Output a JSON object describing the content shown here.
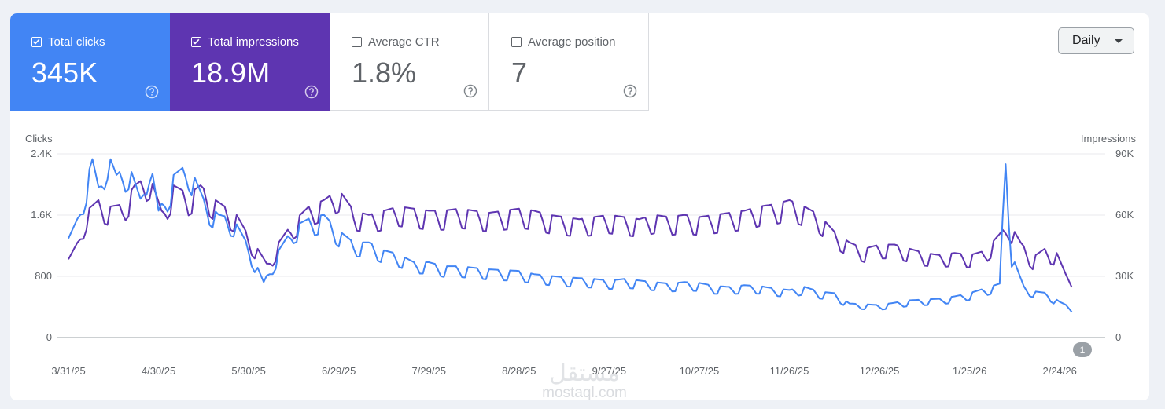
{
  "metrics": {
    "clicks": {
      "label": "Total clicks",
      "value": "345K",
      "checked": true
    },
    "impressions": {
      "label": "Total impressions",
      "value": "18.9M",
      "checked": true
    },
    "ctr": {
      "label": "Average CTR",
      "value": "1.8%",
      "checked": false
    },
    "position": {
      "label": "Average position",
      "value": "7",
      "checked": false
    }
  },
  "granularity": {
    "selected": "Daily"
  },
  "annotation_badge": "1",
  "watermark": {
    "arabic": "مستقل",
    "latin": "mostaql.com"
  },
  "colors": {
    "clicks": "#4285f4",
    "impressions": "#5e35b1",
    "grid": "#e8eaed"
  },
  "chart_data": {
    "type": "line",
    "x_tick_labels": [
      "3/31/25",
      "4/30/25",
      "5/30/25",
      "6/29/25",
      "7/29/25",
      "8/28/25",
      "9/27/25",
      "10/27/25",
      "11/26/25",
      "12/26/25",
      "1/25/26",
      "2/24/26"
    ],
    "x_start": "3/31/25",
    "x_end": "3/8/26",
    "y_left": {
      "label": "Clicks",
      "ticks": [
        "0",
        "800",
        "1.6K",
        "2.4K"
      ],
      "range": [
        0,
        2400
      ]
    },
    "y_right": {
      "label": "Impressions",
      "ticks": [
        "0",
        "30K",
        "60K",
        "90K"
      ],
      "range": [
        0,
        90000
      ]
    },
    "series": [
      {
        "name": "Clicks",
        "axis": "left",
        "anchors": [
          [
            0,
            1250
          ],
          [
            3,
            1500
          ],
          [
            6,
            2000
          ],
          [
            8,
            2250
          ],
          [
            10,
            1900
          ],
          [
            13,
            2350
          ],
          [
            16,
            2050
          ],
          [
            20,
            2200
          ],
          [
            24,
            1750
          ],
          [
            27,
            2300
          ],
          [
            30,
            1600
          ],
          [
            35,
            2050
          ],
          [
            40,
            2200
          ],
          [
            45,
            1750
          ],
          [
            50,
            1550
          ],
          [
            55,
            1500
          ],
          [
            60,
            1150
          ],
          [
            65,
            700
          ],
          [
            70,
            1100
          ],
          [
            75,
            1400
          ],
          [
            80,
            1500
          ],
          [
            85,
            1550
          ],
          [
            90,
            1350
          ],
          [
            95,
            1200
          ],
          [
            100,
            1200
          ],
          [
            105,
            1100
          ],
          [
            110,
            1050
          ],
          [
            115,
            950
          ],
          [
            120,
            950
          ],
          [
            125,
            900
          ],
          [
            130,
            900
          ],
          [
            135,
            880
          ],
          [
            140,
            860
          ],
          [
            145,
            850
          ],
          [
            150,
            840
          ],
          [
            155,
            800
          ],
          [
            160,
            780
          ],
          [
            165,
            760
          ],
          [
            170,
            750
          ],
          [
            175,
            740
          ],
          [
            180,
            720
          ],
          [
            185,
            740
          ],
          [
            190,
            720
          ],
          [
            195,
            700
          ],
          [
            200,
            680
          ],
          [
            205,
            700
          ],
          [
            210,
            690
          ],
          [
            215,
            650
          ],
          [
            220,
            640
          ],
          [
            225,
            660
          ],
          [
            230,
            650
          ],
          [
            235,
            620
          ],
          [
            240,
            600
          ],
          [
            245,
            640
          ],
          [
            250,
            580
          ],
          [
            255,
            560
          ],
          [
            260,
            430
          ],
          [
            265,
            420
          ],
          [
            270,
            410
          ],
          [
            275,
            440
          ],
          [
            280,
            470
          ],
          [
            285,
            480
          ],
          [
            290,
            490
          ],
          [
            295,
            520
          ],
          [
            300,
            560
          ],
          [
            305,
            620
          ],
          [
            310,
            680
          ],
          [
            312,
            2350
          ],
          [
            314,
            1050
          ],
          [
            318,
            650
          ],
          [
            322,
            580
          ],
          [
            326,
            560
          ],
          [
            330,
            450
          ],
          [
            334,
            380
          ]
        ]
      },
      {
        "name": "Impressions",
        "axis": "right",
        "anchors": [
          [
            0,
            37000
          ],
          [
            3,
            45000
          ],
          [
            6,
            60000
          ],
          [
            10,
            65000
          ],
          [
            14,
            62000
          ],
          [
            18,
            63000
          ],
          [
            22,
            72000
          ],
          [
            27,
            77000
          ],
          [
            31,
            60000
          ],
          [
            35,
            72000
          ],
          [
            40,
            68000
          ],
          [
            44,
            72000
          ],
          [
            48,
            66000
          ],
          [
            52,
            62000
          ],
          [
            56,
            58000
          ],
          [
            60,
            48000
          ],
          [
            63,
            42000
          ],
          [
            66,
            35000
          ],
          [
            70,
            45000
          ],
          [
            75,
            55000
          ],
          [
            80,
            62000
          ],
          [
            85,
            65000
          ],
          [
            90,
            70000
          ],
          [
            95,
            60000
          ],
          [
            100,
            58000
          ],
          [
            105,
            60000
          ],
          [
            110,
            62000
          ],
          [
            115,
            61000
          ],
          [
            120,
            60000
          ],
          [
            125,
            60000
          ],
          [
            130,
            61000
          ],
          [
            135,
            60000
          ],
          [
            140,
            59000
          ],
          [
            145,
            60000
          ],
          [
            150,
            61000
          ],
          [
            155,
            60000
          ],
          [
            160,
            58000
          ],
          [
            165,
            57000
          ],
          [
            170,
            56000
          ],
          [
            175,
            57000
          ],
          [
            180,
            58000
          ],
          [
            185,
            57000
          ],
          [
            190,
            56000
          ],
          [
            195,
            58000
          ],
          [
            200,
            57000
          ],
          [
            205,
            58000
          ],
          [
            210,
            57000
          ],
          [
            215,
            58000
          ],
          [
            220,
            59000
          ],
          [
            225,
            60000
          ],
          [
            230,
            62000
          ],
          [
            235,
            63000
          ],
          [
            240,
            65000
          ],
          [
            245,
            62000
          ],
          [
            250,
            58000
          ],
          [
            255,
            50000
          ],
          [
            260,
            45000
          ],
          [
            265,
            42000
          ],
          [
            270,
            44000
          ],
          [
            275,
            44000
          ],
          [
            280,
            42000
          ],
          [
            285,
            40000
          ],
          [
            290,
            39000
          ],
          [
            295,
            40000
          ],
          [
            300,
            39000
          ],
          [
            305,
            41000
          ],
          [
            310,
            49000
          ],
          [
            313,
            55000
          ],
          [
            317,
            45000
          ],
          [
            321,
            38000
          ],
          [
            325,
            42000
          ],
          [
            329,
            40000
          ],
          [
            332,
            30000
          ],
          [
            334,
            28000
          ]
        ]
      }
    ]
  }
}
